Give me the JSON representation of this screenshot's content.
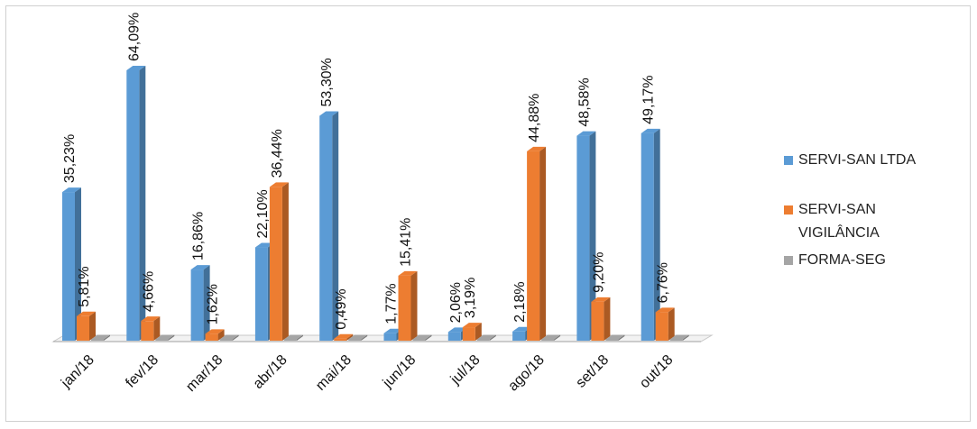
{
  "chart_data": {
    "type": "bar",
    "title": "",
    "xlabel": "",
    "ylabel": "",
    "categories": [
      "jan/18",
      "fev/18",
      "mar/18",
      "abr/18",
      "mai/18",
      "jun/18",
      "jul/18",
      "ago/18",
      "set/18",
      "out/18"
    ],
    "series": [
      {
        "name": "SERVI-SAN LTDA",
        "color": "#5b9bd5",
        "values": [
          35.23,
          64.09,
          16.86,
          22.1,
          53.3,
          1.77,
          2.06,
          2.18,
          48.58,
          49.17
        ],
        "labels": [
          "35,23%",
          "64,09%",
          "16,86%",
          "22,10%",
          "53,30%",
          "1,77%",
          "2,06%",
          "2,18%",
          "48,58%",
          "49,17%"
        ]
      },
      {
        "name": "SERVI-SAN VIGILÂNCIA",
        "color": "#ed7d31",
        "values": [
          5.81,
          4.66,
          1.62,
          36.44,
          0.49,
          15.41,
          3.19,
          44.88,
          9.2,
          6.76
        ],
        "labels": [
          "5,81%",
          "4,66%",
          "1,62%",
          "36,44%",
          "0,49%",
          "15,41%",
          "3,19%",
          "44,88%",
          "9,20%",
          "6,76%"
        ]
      },
      {
        "name": "FORMA-SEG",
        "color": "#a5a5a5",
        "values": [
          0,
          0,
          0,
          0,
          0,
          0,
          0,
          0,
          0,
          0
        ],
        "labels": []
      }
    ],
    "ylim": [
      0,
      70
    ],
    "grid": false,
    "legend_position": "right",
    "style": "3d-clustered-column"
  }
}
